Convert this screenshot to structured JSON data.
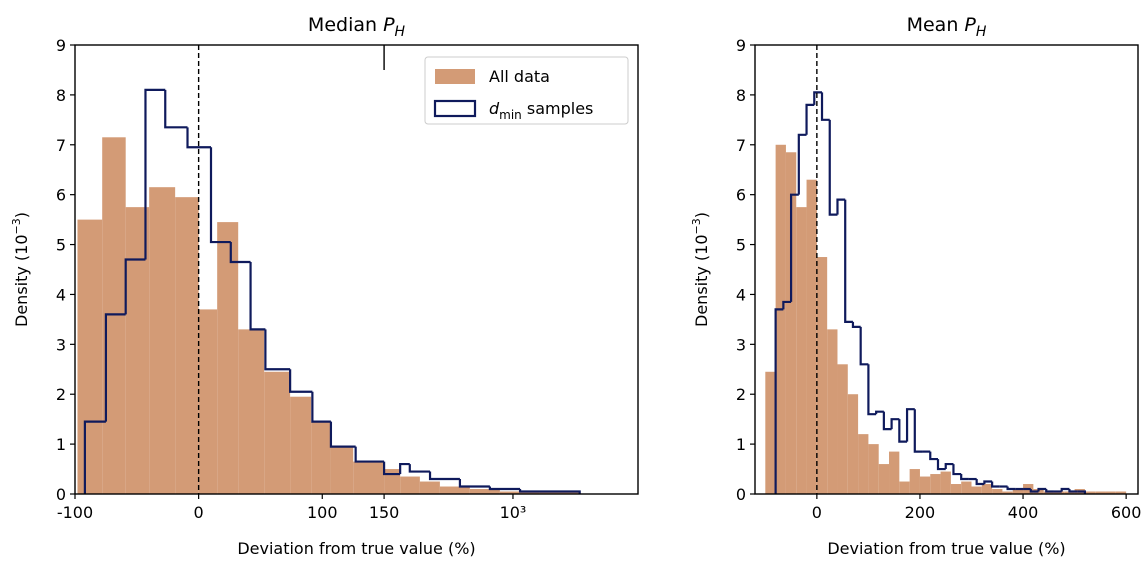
{
  "chart_data": [
    {
      "type": "histogram",
      "title": "Median PH",
      "xlabel": "Deviation from true value (%)",
      "ylabel": "Density (10−3)",
      "xscale": "linear-log",
      "xbreak": 150,
      "xlim": [
        -100,
        6300
      ],
      "ylim": [
        0,
        9
      ],
      "xticks": [
        -100,
        0,
        100,
        150,
        {
          "value": 1000,
          "label": "10³"
        }
      ],
      "yticks": [
        0,
        1,
        2,
        3,
        4,
        5,
        6,
        7,
        8,
        9
      ],
      "vline": 0,
      "legend": "upper right",
      "series": [
        {
          "name": "All data",
          "style": "filled",
          "color": "#d39b76",
          "bins": [
            -98,
            -78,
            -59,
            -40,
            -19,
            0,
            15,
            32,
            53,
            74,
            91,
            107,
            125,
            150,
            190,
            254,
            341,
            530,
            825,
            1480,
            2670
          ],
          "values": [
            5.5,
            7.15,
            5.75,
            6.15,
            5.95,
            3.7,
            5.45,
            3.3,
            2.45,
            1.95,
            1.45,
            0.95,
            0.65,
            0.5,
            0.35,
            0.25,
            0.15,
            0.1,
            0.05,
            0.03
          ]
        },
        {
          "name": "dmin samples",
          "style": "step",
          "color": "#0f1a5c",
          "bins": [
            -92,
            -75,
            -59,
            -43,
            -27,
            -9,
            10,
            26,
            42,
            54,
            74,
            92,
            107,
            127,
            150,
            190,
            219,
            295,
            458,
            712,
            1110,
            2670
          ],
          "values": [
            1.45,
            3.6,
            4.7,
            8.1,
            7.35,
            6.95,
            5.05,
            4.65,
            3.3,
            2.5,
            2.05,
            1.45,
            0.95,
            0.65,
            0.4,
            0.6,
            0.45,
            0.3,
            0.15,
            0.1,
            0.05
          ]
        }
      ]
    },
    {
      "type": "histogram",
      "title": "Mean PH",
      "xlabel": "Deviation from true value (%)",
      "ylabel": "Density (10−3)",
      "xlim": [
        -120,
        623
      ],
      "ylim": [
        0,
        9
      ],
      "xticks": [
        0,
        200,
        400,
        600
      ],
      "yticks": [
        0,
        1,
        2,
        3,
        4,
        5,
        6,
        7,
        8,
        9
      ],
      "vline": 0,
      "series": [
        {
          "style": "filled",
          "color": "#d39b76",
          "bins": [
            -100,
            -80,
            -60,
            -40,
            -20,
            0,
            20,
            40,
            60,
            80,
            100,
            120,
            140,
            160,
            180,
            200,
            220,
            240,
            260,
            280,
            300,
            320,
            340,
            360,
            380,
            400,
            420,
            440,
            460,
            480,
            500,
            520,
            540,
            560,
            580,
            600
          ],
          "values": [
            2.45,
            7.0,
            6.85,
            5.75,
            6.3,
            4.75,
            3.3,
            2.6,
            2.0,
            1.2,
            1.0,
            0.6,
            0.85,
            0.25,
            0.5,
            0.35,
            0.4,
            0.45,
            0.2,
            0.25,
            0.15,
            0.2,
            0.1,
            0.05,
            0.1,
            0.2,
            0.1,
            0.05,
            0.05,
            0.05,
            0.1,
            0.05,
            0.05,
            0.05,
            0.05
          ]
        },
        {
          "style": "step",
          "color": "#0f1a5c",
          "bins": [
            -80,
            -65,
            -50,
            -35,
            -20,
            -5,
            10,
            25,
            40,
            55,
            70,
            85,
            100,
            115,
            130,
            145,
            160,
            175,
            190,
            205,
            220,
            235,
            250,
            265,
            280,
            295,
            310,
            325,
            340,
            355,
            370,
            385,
            400,
            415,
            430,
            445,
            460,
            475,
            490,
            505,
            520
          ],
          "values": [
            3.7,
            3.85,
            6.0,
            7.2,
            7.8,
            8.05,
            7.5,
            5.6,
            5.9,
            3.45,
            3.35,
            2.6,
            1.6,
            1.65,
            1.3,
            1.5,
            1.05,
            1.7,
            0.85,
            0.85,
            0.7,
            0.5,
            0.6,
            0.4,
            0.3,
            0.3,
            0.2,
            0.25,
            0.15,
            0.15,
            0.1,
            0.1,
            0.1,
            0.05,
            0.1,
            0.05,
            0.05,
            0.1,
            0.05,
            0.05
          ]
        }
      ]
    }
  ]
}
